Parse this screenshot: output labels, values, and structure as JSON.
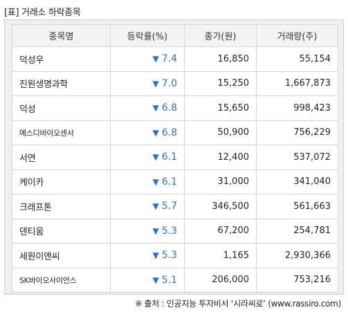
{
  "caption": "[표] 거래소 하락종목",
  "headers": [
    "종목명",
    "등락률(%)",
    "종가(원)",
    "거래량(주)"
  ],
  "arrow": "▼",
  "rows": [
    {
      "name": "덕성우",
      "rate": "7.4",
      "price": "16,850",
      "volume": "55,154"
    },
    {
      "name": "진원생명과학",
      "rate": "7.0",
      "price": "15,250",
      "volume": "1,667,873"
    },
    {
      "name": "덕성",
      "rate": "6.8",
      "price": "15,650",
      "volume": "998,423"
    },
    {
      "name": "에스디바이오센서",
      "rate": "6.8",
      "price": "50,900",
      "volume": "756,229"
    },
    {
      "name": "서연",
      "rate": "6.1",
      "price": "12,400",
      "volume": "537,072"
    },
    {
      "name": "케이카",
      "rate": "6.1",
      "price": "31,000",
      "volume": "341,040"
    },
    {
      "name": "크래프톤",
      "rate": "5.7",
      "price": "346,500",
      "volume": "561,663"
    },
    {
      "name": "덴티움",
      "rate": "5.3",
      "price": "67,200",
      "volume": "254,781"
    },
    {
      "name": "세원이앤씨",
      "rate": "5.3",
      "price": "1,165",
      "volume": "2,930,366"
    },
    {
      "name": "SK바이오사이언스",
      "rate": "5.1",
      "price": "206,000",
      "volume": "753,216"
    }
  ],
  "source": "※ 출처 : 인공지능 투자비서 ‘시라씨로’ (www.rassiro.com)",
  "colors": {
    "down": "#2f6fc8",
    "header_bg": "#f3f3f3",
    "frame_bg": "#efefef",
    "border": "#d4d4d4"
  }
}
